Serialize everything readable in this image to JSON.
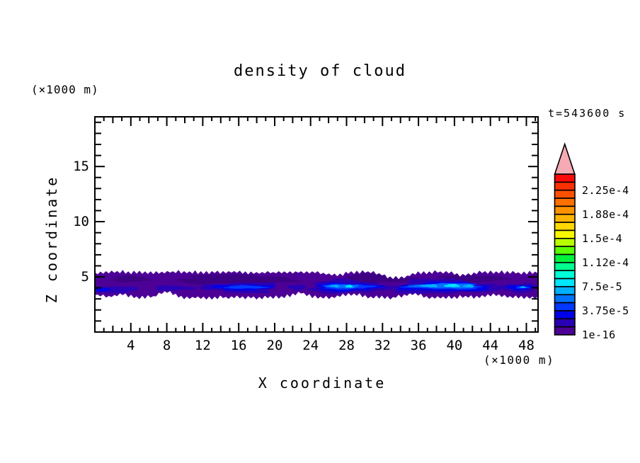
{
  "figure": {
    "title": "density of cloud",
    "time_label": "t=543600 s",
    "x_axis": {
      "label": "X coordinate",
      "unit": "(×1000 m)",
      "tick_labels": [
        4,
        8,
        12,
        16,
        20,
        24,
        28,
        32,
        36,
        40,
        44,
        48
      ]
    },
    "z_axis": {
      "label": "Z coordinate",
      "unit": "(×1000 m)",
      "tick_labels": [
        5,
        10,
        15
      ]
    }
  },
  "chart_data": {
    "type": "heatmap",
    "title": "density of cloud",
    "xlabel": "X coordinate",
    "ylabel": "Z coordinate",
    "axis_units": "×1000 m",
    "time_label": "t=543600 s",
    "xlim": [
      0,
      49.3
    ],
    "ylim": [
      0,
      19.5
    ],
    "x_major_ticks": [
      4,
      8,
      12,
      16,
      20,
      24,
      28,
      32,
      36,
      40,
      44,
      48
    ],
    "z_major_ticks": [
      5,
      10,
      15
    ],
    "grid": false,
    "colorbar": {
      "position": "right",
      "tick_labels": [
        "2.25e-4",
        "1.88e-4",
        "1.5e-4",
        "1.12e-4",
        "7.5e-5",
        "3.75e-5",
        "1e-16"
      ],
      "colors": [
        "#fa0a0a",
        "#f93000",
        "#ff5000",
        "#ff7000",
        "#ff9200",
        "#ffb400",
        "#ffd800",
        "#f8f800",
        "#b8ff00",
        "#5aff00",
        "#00f23c",
        "#00ff90",
        "#00ffd8",
        "#00e6ff",
        "#00b0ff",
        "#0072ff",
        "#0038ff",
        "#0000e8",
        "#2a00b4",
        "#4d0096"
      ],
      "overflow_arrow_color": "#f5aab4",
      "labels_every_n_segments": 3
    },
    "cloud_band": {
      "base_color": "#4d0096",
      "dark_shade_color": "#3e0082",
      "x_span": [
        0,
        49.3
      ],
      "top_profile": [
        [
          0,
          5.4
        ],
        [
          3,
          5.45
        ],
        [
          6,
          5.35
        ],
        [
          9,
          5.45
        ],
        [
          12,
          5.4
        ],
        [
          15,
          5.45
        ],
        [
          18,
          5.35
        ],
        [
          21,
          5.4
        ],
        [
          24,
          5.45
        ],
        [
          27,
          5.15
        ],
        [
          28.5,
          5.4
        ],
        [
          31,
          5.45
        ],
        [
          33,
          4.9
        ],
        [
          34.5,
          5.0
        ],
        [
          36,
          5.4
        ],
        [
          39,
          5.45
        ],
        [
          41,
          5.1
        ],
        [
          42.5,
          5.4
        ],
        [
          45,
          5.45
        ],
        [
          47,
          5.35
        ],
        [
          49.3,
          5.4
        ]
      ],
      "bottom_profile": [
        [
          0,
          3.35
        ],
        [
          1.5,
          3.2
        ],
        [
          3.2,
          3.45
        ],
        [
          4.5,
          3.1
        ],
        [
          6.5,
          3.2
        ],
        [
          7.5,
          3.65
        ],
        [
          8.5,
          3.6
        ],
        [
          9.5,
          3.15
        ],
        [
          12,
          3.1
        ],
        [
          15,
          3.15
        ],
        [
          18,
          3.1
        ],
        [
          21,
          3.2
        ],
        [
          23,
          3.55
        ],
        [
          24.5,
          3.15
        ],
        [
          26,
          3.1
        ],
        [
          28,
          3.4
        ],
        [
          29,
          3.45
        ],
        [
          30.5,
          3.15
        ],
        [
          33,
          3.1
        ],
        [
          35.5,
          3.45
        ],
        [
          37,
          3.15
        ],
        [
          39,
          3.1
        ],
        [
          41,
          3.2
        ],
        [
          43,
          3.15
        ],
        [
          44.5,
          3.4
        ],
        [
          46,
          3.2
        ],
        [
          48,
          3.1
        ],
        [
          49.3,
          3.15
        ]
      ]
    },
    "dark_patches": [
      {
        "x": [
          2,
          6
        ],
        "z": [
          4.5,
          5.1
        ]
      },
      {
        "x": [
          9,
          22
        ],
        "z": [
          4.35,
          5.2
        ]
      },
      {
        "x": [
          27.5,
          35
        ],
        "z": [
          4.4,
          5.25
        ]
      },
      {
        "x": [
          38,
          45.5
        ],
        "z": [
          4.45,
          5.2
        ]
      }
    ],
    "features": [
      {
        "x": [
          0,
          4.8
        ],
        "z": [
          3.55,
          4.15
        ],
        "level": 18
      },
      {
        "x": [
          0,
          1.6
        ],
        "z": [
          3.65,
          4.05
        ],
        "level": 17
      },
      {
        "x": [
          6.5,
          11
        ],
        "z": [
          3.75,
          4.2
        ],
        "level": 18
      },
      {
        "x": [
          12,
          20.5
        ],
        "z": [
          3.55,
          4.5
        ],
        "level": 18
      },
      {
        "x": [
          13,
          19.8
        ],
        "z": [
          3.8,
          4.3
        ],
        "level": 17
      },
      {
        "x": [
          14.5,
          19
        ],
        "z": [
          3.92,
          4.22
        ],
        "level": 16
      },
      {
        "x": [
          21.5,
          23.5
        ],
        "z": [
          3.8,
          4.3
        ],
        "level": 18
      },
      {
        "x": [
          23.8,
          32.5
        ],
        "z": [
          3.5,
          4.7
        ],
        "level": 18
      },
      {
        "x": [
          24.5,
          31.5
        ],
        "z": [
          3.72,
          4.45
        ],
        "level": 17
      },
      {
        "x": [
          25.2,
          30.8
        ],
        "z": [
          3.88,
          4.35
        ],
        "level": 16
      },
      {
        "x": [
          25.8,
          29.5
        ],
        "z": [
          3.98,
          4.3
        ],
        "level": 15
      },
      {
        "x": [
          26.2,
          27.2
        ],
        "z": [
          4.05,
          4.28
        ],
        "level": 14
      },
      {
        "x": [
          27.9,
          28.7
        ],
        "z": [
          4.02,
          4.26
        ],
        "level": 13
      },
      {
        "x": [
          33,
          44.5
        ],
        "z": [
          3.45,
          4.75
        ],
        "level": 18
      },
      {
        "x": [
          34,
          43.8
        ],
        "z": [
          3.68,
          4.5
        ],
        "level": 17
      },
      {
        "x": [
          34.8,
          43.2
        ],
        "z": [
          3.86,
          4.42
        ],
        "level": 16
      },
      {
        "x": [
          35.5,
          42.5
        ],
        "z": [
          3.98,
          4.38
        ],
        "level": 15
      },
      {
        "x": [
          36.3,
          38.2
        ],
        "z": [
          4.05,
          4.33
        ],
        "level": 14
      },
      {
        "x": [
          38.9,
          40.6
        ],
        "z": [
          4.06,
          4.34
        ],
        "level": 13
      },
      {
        "x": [
          41.0,
          42.2
        ],
        "z": [
          4.02,
          4.3
        ],
        "level": 14
      },
      {
        "x": [
          45,
          49.3
        ],
        "z": [
          3.6,
          4.4
        ],
        "level": 18
      },
      {
        "x": [
          45.8,
          48.8
        ],
        "z": [
          3.82,
          4.25
        ],
        "level": 17
      },
      {
        "x": [
          46.8,
          48.3
        ],
        "z": [
          3.94,
          4.16
        ],
        "level": 16
      },
      {
        "x": [
          47.3,
          47.95
        ],
        "z": [
          3.98,
          4.14
        ],
        "level": 14
      }
    ]
  }
}
